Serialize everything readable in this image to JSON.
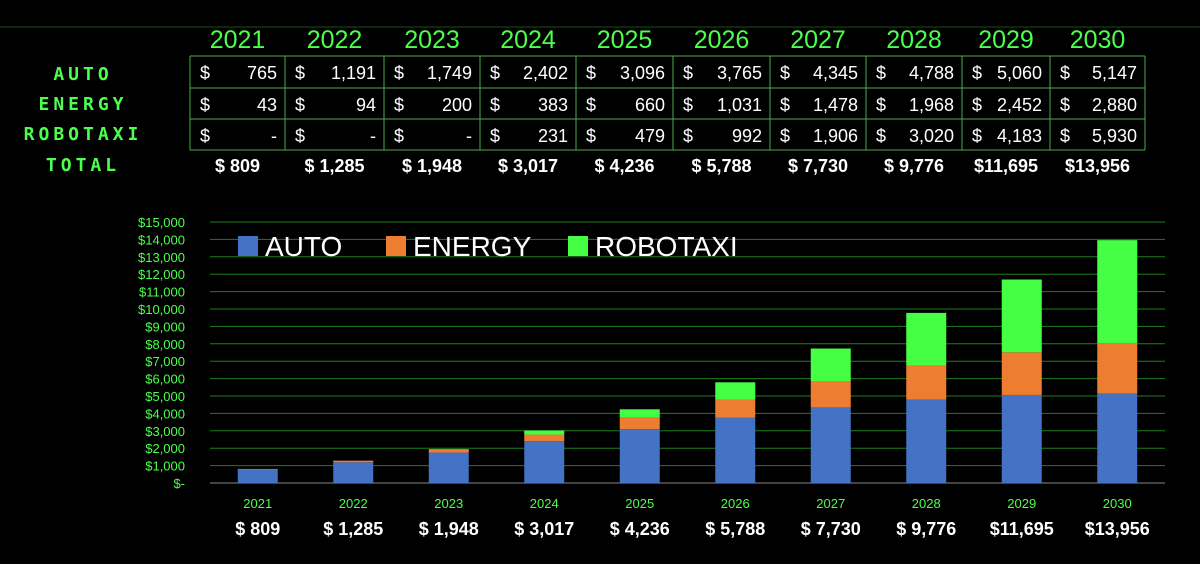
{
  "colors": {
    "background": "#000000",
    "accent_green": "#4cff4c",
    "auto": "#4472c4",
    "energy": "#ed7d31",
    "robotaxi": "#44ff44",
    "gridline": "#1e7d1e",
    "table_border": "#4caa4c"
  },
  "table": {
    "years": [
      "2021",
      "2022",
      "2023",
      "2024",
      "2025",
      "2026",
      "2027",
      "2028",
      "2029",
      "2030"
    ],
    "rows": [
      {
        "label": "AUTO",
        "values": [
          "765",
          "1,191",
          "1,749",
          "2,402",
          "3,096",
          "3,765",
          "4,345",
          "4,788",
          "5,060",
          "5,147"
        ]
      },
      {
        "label": "ENERGY",
        "values": [
          "43",
          "94",
          "200",
          "383",
          "660",
          "1,031",
          "1,478",
          "1,968",
          "2,452",
          "2,880"
        ]
      },
      {
        "label": "ROBOTAXI",
        "values": [
          "-",
          "-",
          "-",
          "231",
          "479",
          "992",
          "1,906",
          "3,020",
          "4,183",
          "5,930"
        ]
      }
    ],
    "currency_symbol": "$",
    "total_label": "TOTAL",
    "totals": [
      "$     809",
      "$  1,285",
      "$  1,948",
      "$  3,017",
      "$  4,236",
      "$  5,788",
      "$  7,730",
      "$  9,776",
      "$11,695",
      "$13,956"
    ]
  },
  "chart_data": {
    "type": "bar",
    "stacked": true,
    "categories": [
      "2021",
      "2022",
      "2023",
      "2024",
      "2025",
      "2026",
      "2027",
      "2028",
      "2029",
      "2030"
    ],
    "series": [
      {
        "name": "AUTO",
        "color": "#4472c4",
        "values": [
          765,
          1191,
          1749,
          2402,
          3096,
          3765,
          4345,
          4788,
          5060,
          5147
        ]
      },
      {
        "name": "ENERGY",
        "color": "#ed7d31",
        "values": [
          43,
          94,
          200,
          383,
          660,
          1031,
          1478,
          1968,
          2452,
          2880
        ]
      },
      {
        "name": "ROBOTAXI",
        "color": "#44ff44",
        "values": [
          0,
          0,
          0,
          231,
          479,
          992,
          1906,
          3020,
          4183,
          5930
        ]
      }
    ],
    "ylim": [
      0,
      15000
    ],
    "yticks": [
      0,
      1000,
      2000,
      3000,
      4000,
      5000,
      6000,
      7000,
      8000,
      9000,
      10000,
      11000,
      12000,
      13000,
      14000,
      15000
    ],
    "ytick_labels": [
      "$-",
      "$1,000",
      "$2,000",
      "$3,000",
      "$4,000",
      "$5,000",
      "$6,000",
      "$7,000",
      "$8,000",
      "$9,000",
      "$10,000",
      "$11,000",
      "$12,000",
      "$13,000",
      "$14,000",
      "$15,000"
    ],
    "grid": true,
    "legend_position": "top-left",
    "totals_row": [
      "$     809",
      "$  1,285",
      "$  1,948",
      "$  3,017",
      "$  4,236",
      "$  5,788",
      "$  7,730",
      "$  9,776",
      "$11,695",
      "$13,956"
    ]
  }
}
